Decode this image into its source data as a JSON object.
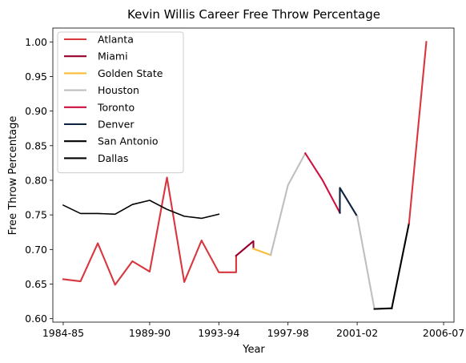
{
  "chart_data": {
    "type": "line",
    "title": "Kevin Willis Career Free Throw Percentage",
    "xlabel": "Year",
    "ylabel": "Free Throw Percentage",
    "x_tick_labels": [
      "1984-85",
      "1989-90",
      "1993-94",
      "1997-98",
      "2001-02",
      "2006-07"
    ],
    "x_tick_positions": [
      0,
      5,
      9,
      13,
      17,
      22
    ],
    "xlim": [
      -0.6,
      22.6
    ],
    "ylim": [
      0.595,
      1.02
    ],
    "y_ticks": [
      "0.60",
      "0.65",
      "0.70",
      "0.75",
      "0.80",
      "0.85",
      "0.90",
      "0.95",
      "1.00"
    ],
    "grid": false,
    "legend_position": "upper-left",
    "series": [
      {
        "name": "Atlanta",
        "color": "#d9363e",
        "x": [
          0,
          1,
          2,
          3,
          4,
          5,
          6,
          7,
          8,
          9,
          10,
          10
        ],
        "y": [
          0.657,
          0.654,
          0.709,
          0.649,
          0.683,
          0.668,
          0.804,
          0.653,
          0.713,
          0.667,
          0.667,
          0.691
        ]
      },
      {
        "name": "Miami",
        "color": "#98002e",
        "x": [
          10,
          11,
          11
        ],
        "y": [
          0.691,
          0.712,
          0.701
        ]
      },
      {
        "name": "Golden State",
        "color": "#f9bc35",
        "x": [
          11,
          12
        ],
        "y": [
          0.701,
          0.692
        ]
      },
      {
        "name": "Houston",
        "color": "#bfbfbf",
        "x": [
          12,
          13,
          14
        ],
        "y": [
          0.692,
          0.793,
          0.839
        ]
      },
      {
        "name": "Toronto",
        "color": "#ce1141",
        "x": [
          14,
          15,
          16
        ],
        "y": [
          0.839,
          0.8,
          0.753
        ]
      },
      {
        "name": "Denver",
        "color": "#0e2240",
        "x": [
          16,
          16,
          17
        ],
        "y": [
          0.753,
          0.789,
          0.748
        ]
      },
      {
        "name": "Houston",
        "color": "#bfbfbf",
        "x": [
          17,
          18
        ],
        "y": [
          0.748,
          0.614
        ]
      },
      {
        "name": "San Antonio",
        "color": "#000000",
        "x": [
          18,
          19
        ],
        "y": [
          0.614,
          0.615
        ]
      },
      {
        "name": "Dallas",
        "color": "#000000",
        "x": [
          19,
          20
        ],
        "y": [
          0.615,
          0.738
        ]
      },
      {
        "name": "Atlanta",
        "color": "#d9363e",
        "x": [
          20,
          21
        ],
        "y": [
          0.738,
          1.0
        ]
      },
      {
        "name": "",
        "color": "#000000",
        "thin": true,
        "x": [
          0,
          1,
          2,
          3,
          4,
          5,
          6,
          7,
          8,
          9
        ],
        "y": [
          0.764,
          0.752,
          0.752,
          0.751,
          0.765,
          0.771,
          0.758,
          0.748,
          0.745,
          0.751
        ]
      }
    ],
    "legend": [
      {
        "name": "Atlanta",
        "color": "#d9363e"
      },
      {
        "name": "Miami",
        "color": "#98002e"
      },
      {
        "name": "Golden State",
        "color": "#f9bc35"
      },
      {
        "name": "Houston",
        "color": "#bfbfbf"
      },
      {
        "name": "Toronto",
        "color": "#ce1141"
      },
      {
        "name": "Denver",
        "color": "#0e2240"
      },
      {
        "name": "San Antonio",
        "color": "#000000"
      },
      {
        "name": "Dallas",
        "color": "#000000"
      }
    ]
  }
}
